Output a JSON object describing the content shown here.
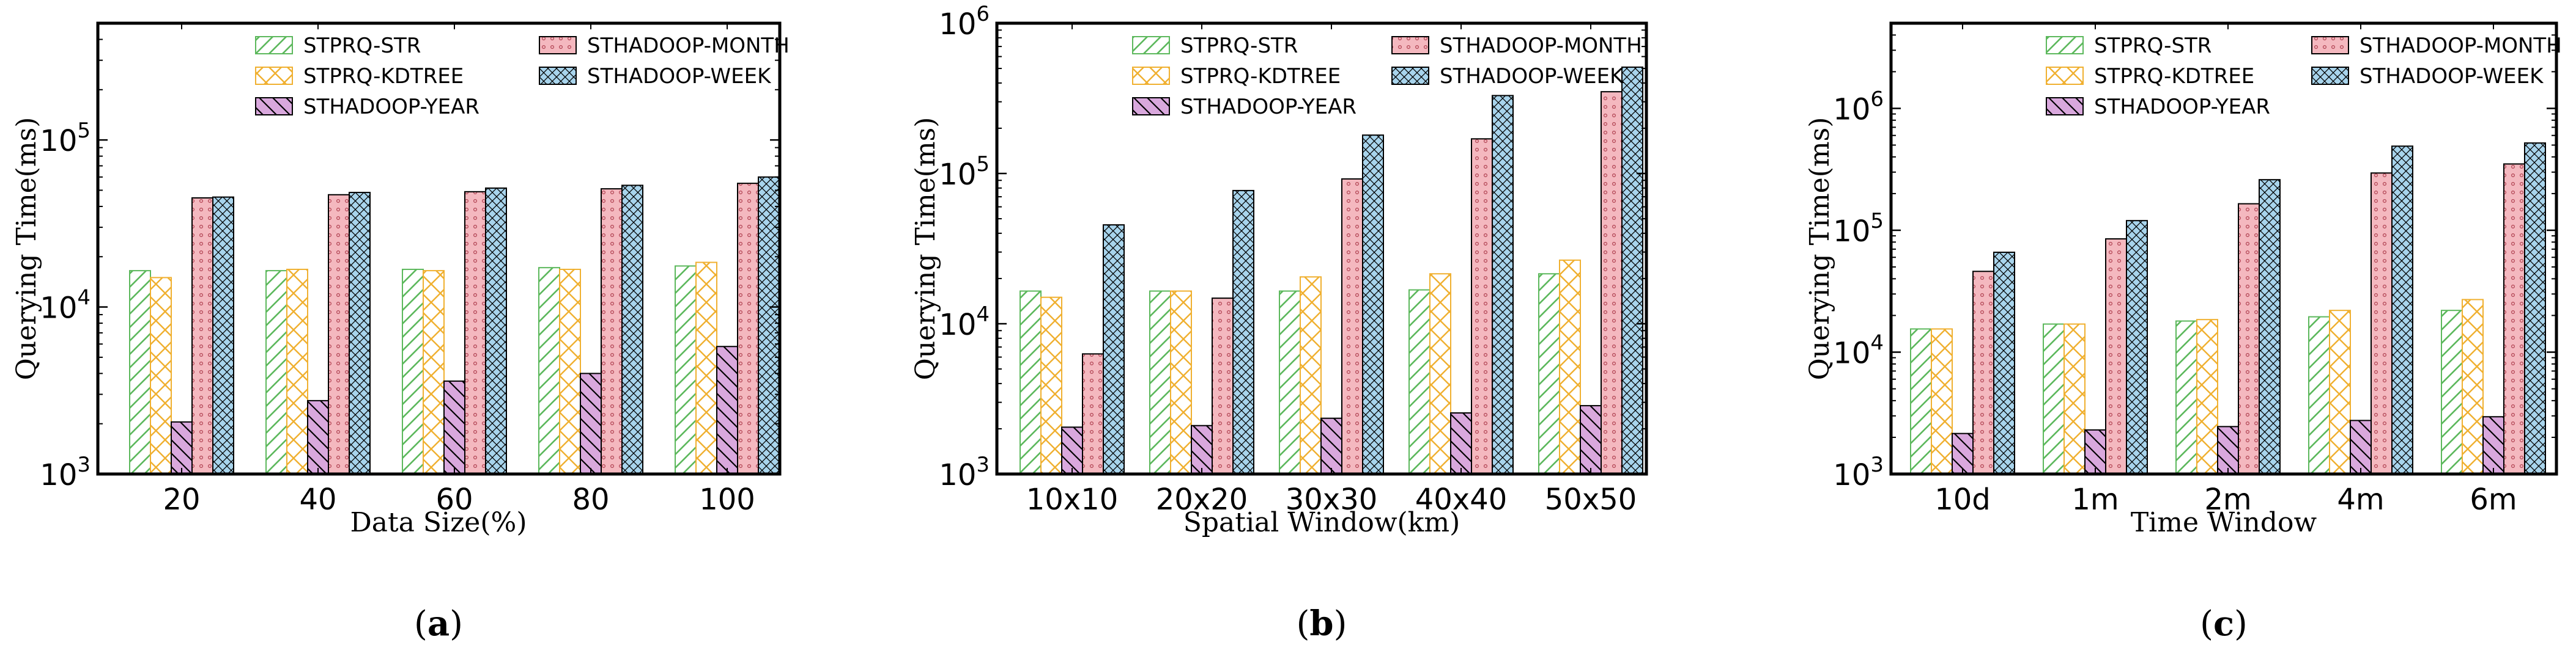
{
  "colors": {
    "STPRQ-STR": "#5cb85c",
    "STPRQ-KDTREE": "#f0b030",
    "STHADOOP-YEAR": "#b070b0",
    "STHADOOP-MONTH": "#e89098",
    "STHADOOP-WEEK": "#5a9ad8"
  },
  "chart_data": [
    {
      "type": "bar",
      "panel_label": "a",
      "xlabel": "Data Size(%)",
      "ylabel": "Querying Time(ms)",
      "yscale": "log",
      "ylim": [
        1000,
        500000
      ],
      "yticks": [
        {
          "value": 1000,
          "base": "10",
          "exp": "3"
        },
        {
          "value": 10000,
          "base": "10",
          "exp": "4"
        },
        {
          "value": 100000,
          "base": "10",
          "exp": "5"
        }
      ],
      "categories": [
        "20",
        "40",
        "60",
        "80",
        "100"
      ],
      "series": [
        {
          "name": "STPRQ-STR",
          "values": [
            16500,
            16500,
            16800,
            17200,
            17600
          ]
        },
        {
          "name": "STPRQ-KDTREE",
          "values": [
            15000,
            16800,
            16500,
            16800,
            18500
          ]
        },
        {
          "name": "STHADOOP-YEAR",
          "values": [
            2050,
            2750,
            3600,
            4000,
            5800
          ]
        },
        {
          "name": "STHADOOP-MONTH",
          "values": [
            45000,
            47000,
            49000,
            51000,
            55000
          ]
        },
        {
          "name": "STHADOOP-WEEK",
          "values": [
            45500,
            48500,
            51500,
            53500,
            60000
          ]
        }
      ],
      "legend": {
        "col1": [
          "STPRQ-STR",
          "STPRQ-KDTREE",
          "STHADOOP-YEAR"
        ],
        "col2": [
          "STHADOOP-MONTH",
          "STHADOOP-WEEK"
        ]
      }
    },
    {
      "type": "bar",
      "panel_label": "b",
      "xlabel": "Spatial Window(km)",
      "ylabel": "Querying Time(ms)",
      "yscale": "log",
      "ylim": [
        1000,
        1000000
      ],
      "yticks": [
        {
          "value": 1000,
          "base": "10",
          "exp": "3"
        },
        {
          "value": 10000,
          "base": "10",
          "exp": "4"
        },
        {
          "value": 100000,
          "base": "10",
          "exp": "5"
        },
        {
          "value": 1000000,
          "base": "10",
          "exp": "6"
        }
      ],
      "categories": [
        "10x10",
        "20x20",
        "30x30",
        "40x40",
        "50x50"
      ],
      "series": [
        {
          "name": "STPRQ-STR",
          "values": [
            16500,
            16500,
            16500,
            16800,
            21500
          ]
        },
        {
          "name": "STPRQ-KDTREE",
          "values": [
            15000,
            16500,
            20500,
            21500,
            26500
          ]
        },
        {
          "name": "STHADOOP-YEAR",
          "values": [
            2050,
            2100,
            2350,
            2550,
            2850
          ]
        },
        {
          "name": "STHADOOP-MONTH",
          "values": [
            6300,
            14800,
            92000,
            170000,
            350000
          ]
        },
        {
          "name": "STHADOOP-WEEK",
          "values": [
            45500,
            77000,
            180000,
            330000,
            510000
          ]
        }
      ],
      "legend": {
        "col1": [
          "STPRQ-STR",
          "STPRQ-KDTREE",
          "STHADOOP-YEAR"
        ],
        "col2": [
          "STHADOOP-MONTH",
          "STHADOOP-WEEK"
        ]
      }
    },
    {
      "type": "bar",
      "panel_label": "c",
      "xlabel": "Time Window",
      "ylabel": "Querying Time(ms)",
      "yscale": "log",
      "ylim": [
        1000,
        5000000
      ],
      "yticks": [
        {
          "value": 1000,
          "base": "10",
          "exp": "3"
        },
        {
          "value": 10000,
          "base": "10",
          "exp": "4"
        },
        {
          "value": 100000,
          "base": "10",
          "exp": "5"
        },
        {
          "value": 1000000,
          "base": "10",
          "exp": "6"
        }
      ],
      "categories": [
        "10d",
        "1m",
        "2m",
        "4m",
        "6m"
      ],
      "series": [
        {
          "name": "STPRQ-STR",
          "values": [
            15500,
            17000,
            18000,
            19500,
            22000
          ]
        },
        {
          "name": "STPRQ-KDTREE",
          "values": [
            15500,
            17000,
            18500,
            22000,
            27000
          ]
        },
        {
          "name": "STHADOOP-YEAR",
          "values": [
            2150,
            2300,
            2450,
            2750,
            2950
          ]
        },
        {
          "name": "STHADOOP-MONTH",
          "values": [
            46000,
            85000,
            165000,
            295000,
            350000
          ]
        },
        {
          "name": "STHADOOP-WEEK",
          "values": [
            66000,
            120000,
            260000,
            490000,
            520000
          ]
        }
      ],
      "legend": {
        "col1": [
          "STPRQ-STR",
          "STPRQ-KDTREE",
          "STHADOOP-YEAR"
        ],
        "col2": [
          "STHADOOP-MONTH",
          "STHADOOP-WEEK"
        ]
      }
    }
  ]
}
